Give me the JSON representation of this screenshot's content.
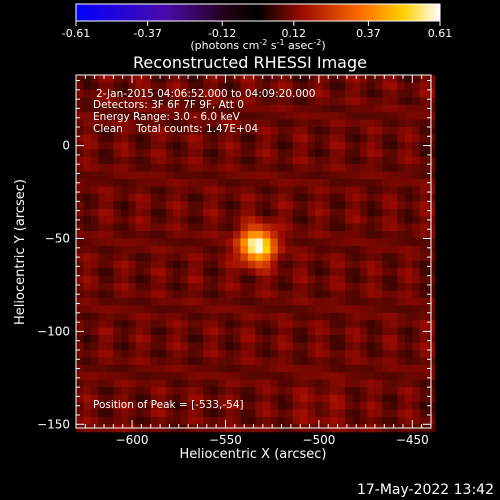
{
  "chart_data": {
    "type": "heatmap",
    "title": "Reconstructed RHESSI Image",
    "xlabel": "Heliocentric X (arcsec)",
    "ylabel": "Heliocentric Y (arcsec)",
    "xlim": [
      -630,
      -440
    ],
    "ylim": [
      -152,
      38
    ],
    "xticks": [
      -600,
      -550,
      -500,
      -450
    ],
    "yticks": [
      0,
      -50,
      -100,
      -150
    ],
    "colorbar": {
      "min": -0.61,
      "max": 0.61,
      "ticks": [
        "-0.61",
        "-0.37",
        "-0.12",
        "0.12",
        "0.37",
        "0.61"
      ],
      "unit_label": "(photons cm^-2 s^-1 asec^-2)"
    },
    "annotations": [
      "2-Jan-2015 04:06:52.000 to 04:09:20.000",
      "Detectors: 3F 6F 7F 9F, Att 0",
      "Energy Range: 3.0 - 6.0 keV",
      "Clean    Total counts: 1.47E+04"
    ],
    "peak_label": "Position of Peak = [-533,-54]",
    "sources": [
      {
        "x": -533,
        "y": -54,
        "peak": 0.61,
        "sigma": 6.5
      },
      {
        "x": -500,
        "y": -140,
        "peak": 0.13,
        "sigma": 9
      }
    ],
    "background_level": 0.1
  },
  "timestamp": "17-May-2022 13:42"
}
